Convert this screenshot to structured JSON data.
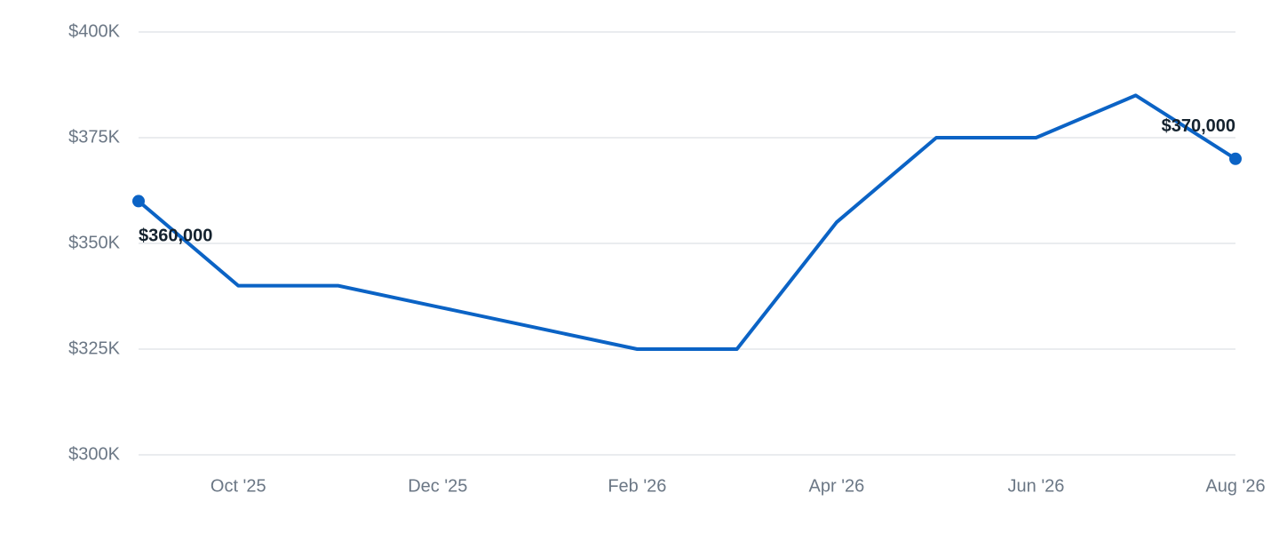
{
  "chart_data": {
    "type": "line",
    "categories": [
      null,
      "Oct '25",
      null,
      "Dec '25",
      null,
      "Feb '26",
      null,
      "Apr '26",
      null,
      "Jun '26",
      null,
      "Aug '26"
    ],
    "series": [
      {
        "name": null,
        "color": "#0b63c5",
        "values": [
          360000,
          340000,
          340000,
          335000,
          330000,
          325000,
          325000,
          355000,
          375000,
          375000,
          385000,
          370000
        ],
        "value_labels": [
          "$360,000",
          null,
          null,
          null,
          null,
          null,
          null,
          null,
          null,
          null,
          null,
          "$370,000"
        ]
      }
    ],
    "ylim": [
      300000,
      400000
    ],
    "yticks": [
      {
        "value": 300000,
        "label": "$300K"
      },
      {
        "value": 325000,
        "label": "$325K"
      },
      {
        "value": 350000,
        "label": "$350K"
      },
      {
        "value": 375000,
        "label": "$375K"
      },
      {
        "value": 400000,
        "label": "$400K"
      }
    ],
    "grid": true
  }
}
